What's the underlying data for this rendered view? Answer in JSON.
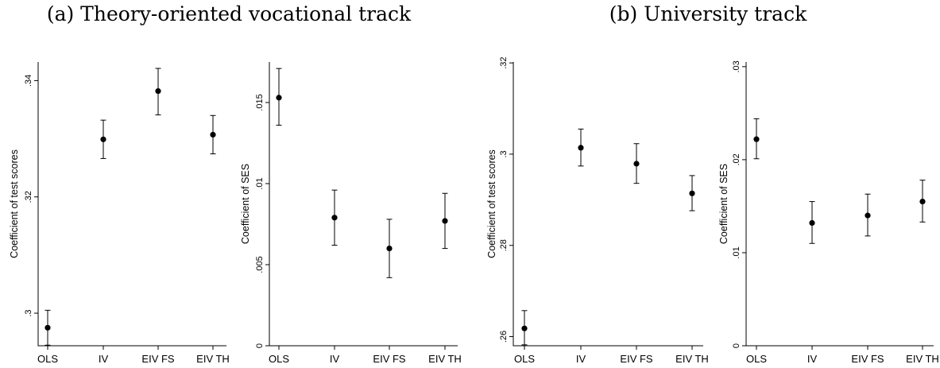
{
  "panel_titles": [
    "(a) Theory-oriented vocational track",
    "(b) University track"
  ],
  "chart_data": [
    {
      "type": "scatter",
      "panel": "(a) Theory-oriented vocational track",
      "ylabel": "Coefficient of test scores",
      "categories": [
        "OLS",
        "IV",
        "EIV FS",
        "EIV TH"
      ],
      "estimates": [
        0.2975,
        0.3299,
        0.3382,
        0.3307
      ],
      "ci_low": [
        0.2945,
        0.3266,
        0.3341,
        0.3274
      ],
      "ci_high": [
        0.3005,
        0.3332,
        0.3421,
        0.334
      ],
      "yticks": [
        0.3,
        0.32,
        0.34
      ],
      "ytick_labels": [
        ".3",
        ".32",
        ".34"
      ],
      "ylim": [
        0.2944,
        0.3432
      ]
    },
    {
      "type": "scatter",
      "panel": "(a) Theory-oriented vocational track",
      "ylabel": "Coefficient of SES",
      "categories": [
        "OLS",
        "IV",
        "EIV FS",
        "EIV TH"
      ],
      "estimates": [
        0.0153,
        0.0079,
        0.006,
        0.0077
      ],
      "ci_low": [
        0.0136,
        0.0062,
        0.0042,
        0.006
      ],
      "ci_high": [
        0.0171,
        0.0096,
        0.0078,
        0.0094
      ],
      "yticks": [
        0,
        0.005,
        0.01,
        0.015
      ],
      "ytick_labels": [
        "0",
        ".005",
        ".01",
        ".015"
      ],
      "ylim": [
        0,
        0.0175
      ]
    },
    {
      "type": "scatter",
      "panel": "(b) University track",
      "ylabel": "Coefficient of test scores",
      "categories": [
        "OLS",
        "IV",
        "EIV FS",
        "EIV TH"
      ],
      "estimates": [
        0.2618,
        0.3014,
        0.2979,
        0.2914
      ],
      "ci_low": [
        0.2582,
        0.2974,
        0.2936,
        0.2876
      ],
      "ci_high": [
        0.2657,
        0.3055,
        0.3023,
        0.2953
      ],
      "yticks": [
        0.26,
        0.28,
        0.3,
        0.32
      ],
      "ytick_labels": [
        ".26",
        ".28",
        ".3",
        ".32"
      ],
      "ylim": [
        0.258,
        0.3202
      ]
    },
    {
      "type": "scatter",
      "panel": "(b) University track",
      "ylabel": "Coefficient of SES",
      "categories": [
        "OLS",
        "IV",
        "EIV FS",
        "EIV TH"
      ],
      "estimates": [
        0.0222,
        0.0132,
        0.014,
        0.0155
      ],
      "ci_low": [
        0.0201,
        0.011,
        0.0118,
        0.0133
      ],
      "ci_high": [
        0.0244,
        0.0155,
        0.0163,
        0.0178
      ],
      "yticks": [
        0,
        0.01,
        0.02,
        0.03
      ],
      "ytick_labels": [
        "0",
        ".01",
        ".02",
        ".03"
      ],
      "ylim": [
        0,
        0.0305
      ]
    }
  ]
}
